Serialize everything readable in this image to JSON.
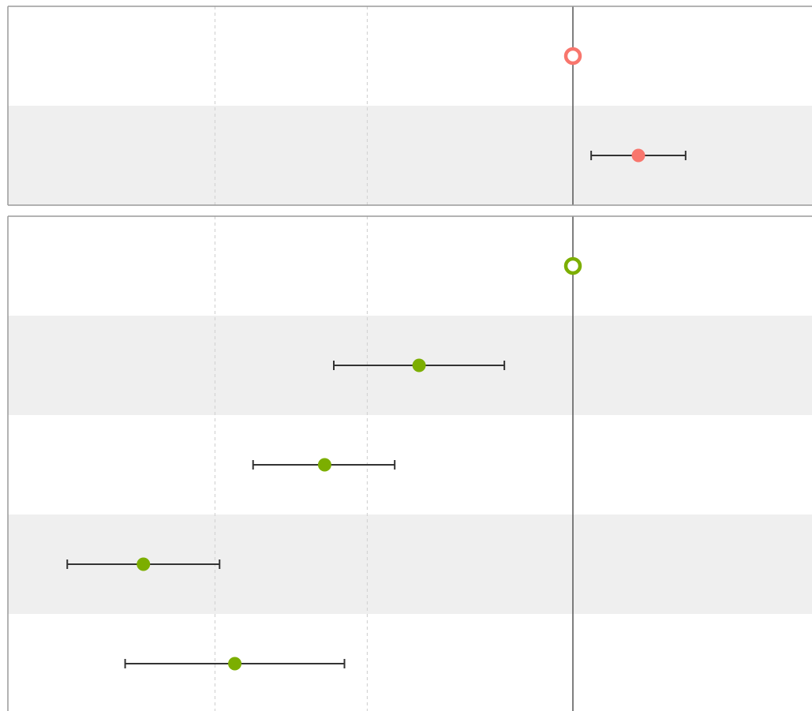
{
  "chart_data": {
    "type": "forest",
    "title": "",
    "xlabel": "",
    "ylabel": "",
    "xlim": [
      -3.7,
      1.55
    ],
    "gridlines": [
      -2.35,
      -1.35
    ],
    "reference_line": 0,
    "row_striping": true,
    "panels": [
      {
        "color": "#f8766d",
        "rows": [
          {
            "estimate": 0,
            "lower": null,
            "upper": null,
            "reference": true
          },
          {
            "estimate": 0.43,
            "lower": 0.12,
            "upper": 0.74,
            "reference": false
          }
        ]
      },
      {
        "color": "#7cae00",
        "rows": [
          {
            "estimate": 0,
            "lower": null,
            "upper": null,
            "reference": true
          },
          {
            "estimate": -1.01,
            "lower": -1.57,
            "upper": -0.45,
            "reference": false
          },
          {
            "estimate": -1.63,
            "lower": -2.1,
            "upper": -1.17,
            "reference": false
          },
          {
            "estimate": -2.82,
            "lower": -3.32,
            "upper": -2.32,
            "reference": false
          },
          {
            "estimate": -2.22,
            "lower": -2.94,
            "upper": -1.5,
            "reference": false
          }
        ]
      }
    ]
  }
}
